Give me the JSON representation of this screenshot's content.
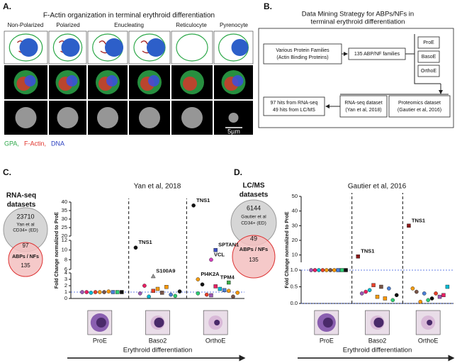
{
  "panel_a": {
    "letter": "A.",
    "title": "F-Actin organization in terminal erythroid differentiation",
    "stages": [
      "Non-Polarized",
      "Polarized",
      "Enucleating",
      "Reticulocyte",
      "Pyrenocyte"
    ],
    "scale_bar": "5µm",
    "legend": [
      "GPA,",
      "F-Actin,",
      "DNA"
    ]
  },
  "panel_b": {
    "letter": "B.",
    "title_lines": [
      "Data Mining Strategy for ABPs/NFs in",
      "terminal erythroid differentiation"
    ],
    "source_box": [
      "Various Protein Families",
      "(Actin Binding Proteins)"
    ],
    "families_box": "135 ABP/NF families",
    "stages": [
      "ProE",
      "BasoE",
      "OrthoE"
    ],
    "rnaseq_box": [
      "RNA-seq dataset",
      "(Yan et al, 2018)"
    ],
    "proteomics_box": [
      "Proteomics dataset",
      "(Gautier et al, 2016)"
    ],
    "hits_box": [
      "97 hits from RNA-seq",
      "49 hits from LC/MS"
    ]
  },
  "panel_c": {
    "letter": "C.",
    "venn": {
      "title_lines": [
        "RNA-seq",
        "datasets"
      ],
      "dataset_count": 23710,
      "dataset_lines": [
        "Yan et al",
        "CD34+ (ED)"
      ],
      "overlap": 97,
      "set_label": "ABPs / NFs",
      "set_count": 135
    }
  },
  "panel_d": {
    "letter": "D.",
    "venn": {
      "title_lines": [
        "LC/MS",
        "datasets"
      ],
      "dataset_count": 6144,
      "dataset_lines": [
        "Gautier et al",
        "CD34+ (ED)"
      ],
      "overlap": 49,
      "set_label": "ABPs / NFs",
      "set_count": 135
    }
  },
  "chart_data": [
    {
      "type": "scatter",
      "title": "Yan et al, 2018",
      "y_label": "Fold Change normalized to ProE",
      "x_label": "Erythroid differentiation",
      "categories": [
        "ProE",
        "Baso2",
        "OrthoE"
      ],
      "y_segments": [
        [
          0,
          4
        ],
        [
          6,
          12
        ],
        [
          20,
          40
        ]
      ],
      "yticks": [
        0,
        1,
        2,
        3,
        4,
        6,
        8,
        10,
        12,
        20,
        25,
        30,
        35,
        40
      ],
      "reference_lines": [
        1
      ],
      "palette": [
        "#e8402a",
        "#4a7fd6",
        "#9b59b6",
        "#f39c12",
        "#2ecc71",
        "#e91e63",
        "#795548",
        "#111111",
        "#00bcd4",
        "#ff9800"
      ],
      "points": [
        {
          "category": 0,
          "value": 1
        },
        {
          "category": 0,
          "value": 1
        },
        {
          "category": 0,
          "value": 1
        },
        {
          "category": 0,
          "value": 1
        },
        {
          "category": 0,
          "value": 1
        },
        {
          "category": 0,
          "value": 1
        },
        {
          "category": 0,
          "value": 1
        },
        {
          "category": 0,
          "value": 1
        },
        {
          "category": 0,
          "value": 0.9
        },
        {
          "category": 0,
          "value": 1.1
        },
        {
          "category": 1,
          "value": 1.2
        },
        {
          "category": 1,
          "value": 0.6
        },
        {
          "category": 1,
          "value": 0.8
        },
        {
          "category": 1,
          "value": 1.5
        },
        {
          "category": 1,
          "value": 0.4
        },
        {
          "category": 1,
          "value": 2
        },
        {
          "category": 1,
          "value": 0.9
        },
        {
          "category": 1,
          "value": 1.1
        },
        {
          "category": 1,
          "value": 0.3
        },
        {
          "category": 1,
          "value": 1.8
        },
        {
          "category": 1,
          "value": 10.5,
          "label": "TNS1",
          "color": "#111111",
          "shape": "circle"
        },
        {
          "category": 1,
          "value": 3.5,
          "label": "S100A9",
          "color": "#999999",
          "shape": "triangle"
        },
        {
          "category": 2,
          "value": 0.5
        },
        {
          "category": 2,
          "value": 1.2
        },
        {
          "category": 2,
          "value": 0.8
        },
        {
          "category": 2,
          "value": 1.9
        },
        {
          "category": 2,
          "value": 0.3
        },
        {
          "category": 2,
          "value": 2.2
        },
        {
          "category": 2,
          "value": 1.5
        },
        {
          "category": 2,
          "value": 0.9
        },
        {
          "category": 2,
          "value": 0.6
        },
        {
          "category": 2,
          "value": 1.3
        },
        {
          "category": 2,
          "value": 38,
          "label": "TNS1",
          "color": "#111111",
          "shape": "circle"
        },
        {
          "category": 2,
          "value": 8,
          "label": "VCL",
          "color": "#d63fc0",
          "shape": "circle"
        },
        {
          "category": 2,
          "value": 2.5,
          "label": "TPM4",
          "color": "#3fae49",
          "shape": "square"
        },
        {
          "category": 2,
          "value": 3,
          "label": "PI4K2A",
          "color": "#f39c12",
          "shape": "circle"
        },
        {
          "category": 2,
          "value": 10,
          "label": "SPTAN1",
          "color": "#3b4fc4",
          "shape": "square"
        }
      ]
    },
    {
      "type": "scatter",
      "title": "Gautier et al, 2016",
      "y_label": "Fold Change normalized to ProE",
      "x_label": "Erythroid differentiation",
      "categories": [
        "ProE",
        "Baso2",
        "OrthoE"
      ],
      "y_segments": [
        [
          0,
          1
        ],
        [
          5,
          50
        ]
      ],
      "yticks": [
        {
          "value": 0,
          "label": "0.0"
        },
        {
          "value": 0.5,
          "label": "0.5"
        },
        {
          "value": 1,
          "label": "1.0"
        },
        10,
        20,
        30,
        40,
        50
      ],
      "reference_lines": [
        1,
        0
      ],
      "palette": [
        "#e8402a",
        "#4a7fd6",
        "#9b59b6",
        "#f39c12",
        "#2ecc71",
        "#e91e63",
        "#795548",
        "#111111",
        "#00bcd4",
        "#ff9800"
      ],
      "points": [
        {
          "category": 0,
          "value": 1
        },
        {
          "category": 0,
          "value": 1
        },
        {
          "category": 0,
          "value": 1
        },
        {
          "category": 0,
          "value": 1
        },
        {
          "category": 0,
          "value": 1
        },
        {
          "category": 0,
          "value": 1
        },
        {
          "category": 0,
          "value": 1
        },
        {
          "category": 0,
          "value": 1
        },
        {
          "category": 0,
          "value": 1
        },
        {
          "category": 0,
          "value": 1
        },
        {
          "category": 1,
          "value": 0.55
        },
        {
          "category": 1,
          "value": 0.45
        },
        {
          "category": 1,
          "value": 0.3
        },
        {
          "category": 1,
          "value": 0.2
        },
        {
          "category": 1,
          "value": 0.1
        },
        {
          "category": 1,
          "value": 0.35
        },
        {
          "category": 1,
          "value": 0.5
        },
        {
          "category": 1,
          "value": 0.25
        },
        {
          "category": 1,
          "value": 0.4
        },
        {
          "category": 1,
          "value": 0.15
        },
        {
          "category": 1,
          "value": 9,
          "label": "TNS1",
          "color": "#8b1a1a",
          "shape": "square"
        },
        {
          "category": 2,
          "value": 0.3
        },
        {
          "category": 2,
          "value": 0.2
        },
        {
          "category": 2,
          "value": 0.45
        },
        {
          "category": 2,
          "value": 0.1
        },
        {
          "category": 2,
          "value": 0.25
        },
        {
          "category": 2,
          "value": 0.35
        },
        {
          "category": 2,
          "value": 0.15
        },
        {
          "category": 2,
          "value": 0.5
        },
        {
          "category": 2,
          "value": 0.05
        },
        {
          "category": 2,
          "value": 0.3
        },
        {
          "category": 2,
          "value": 30,
          "label": "TNS1",
          "color": "#8b1a1a",
          "shape": "square"
        }
      ]
    }
  ]
}
